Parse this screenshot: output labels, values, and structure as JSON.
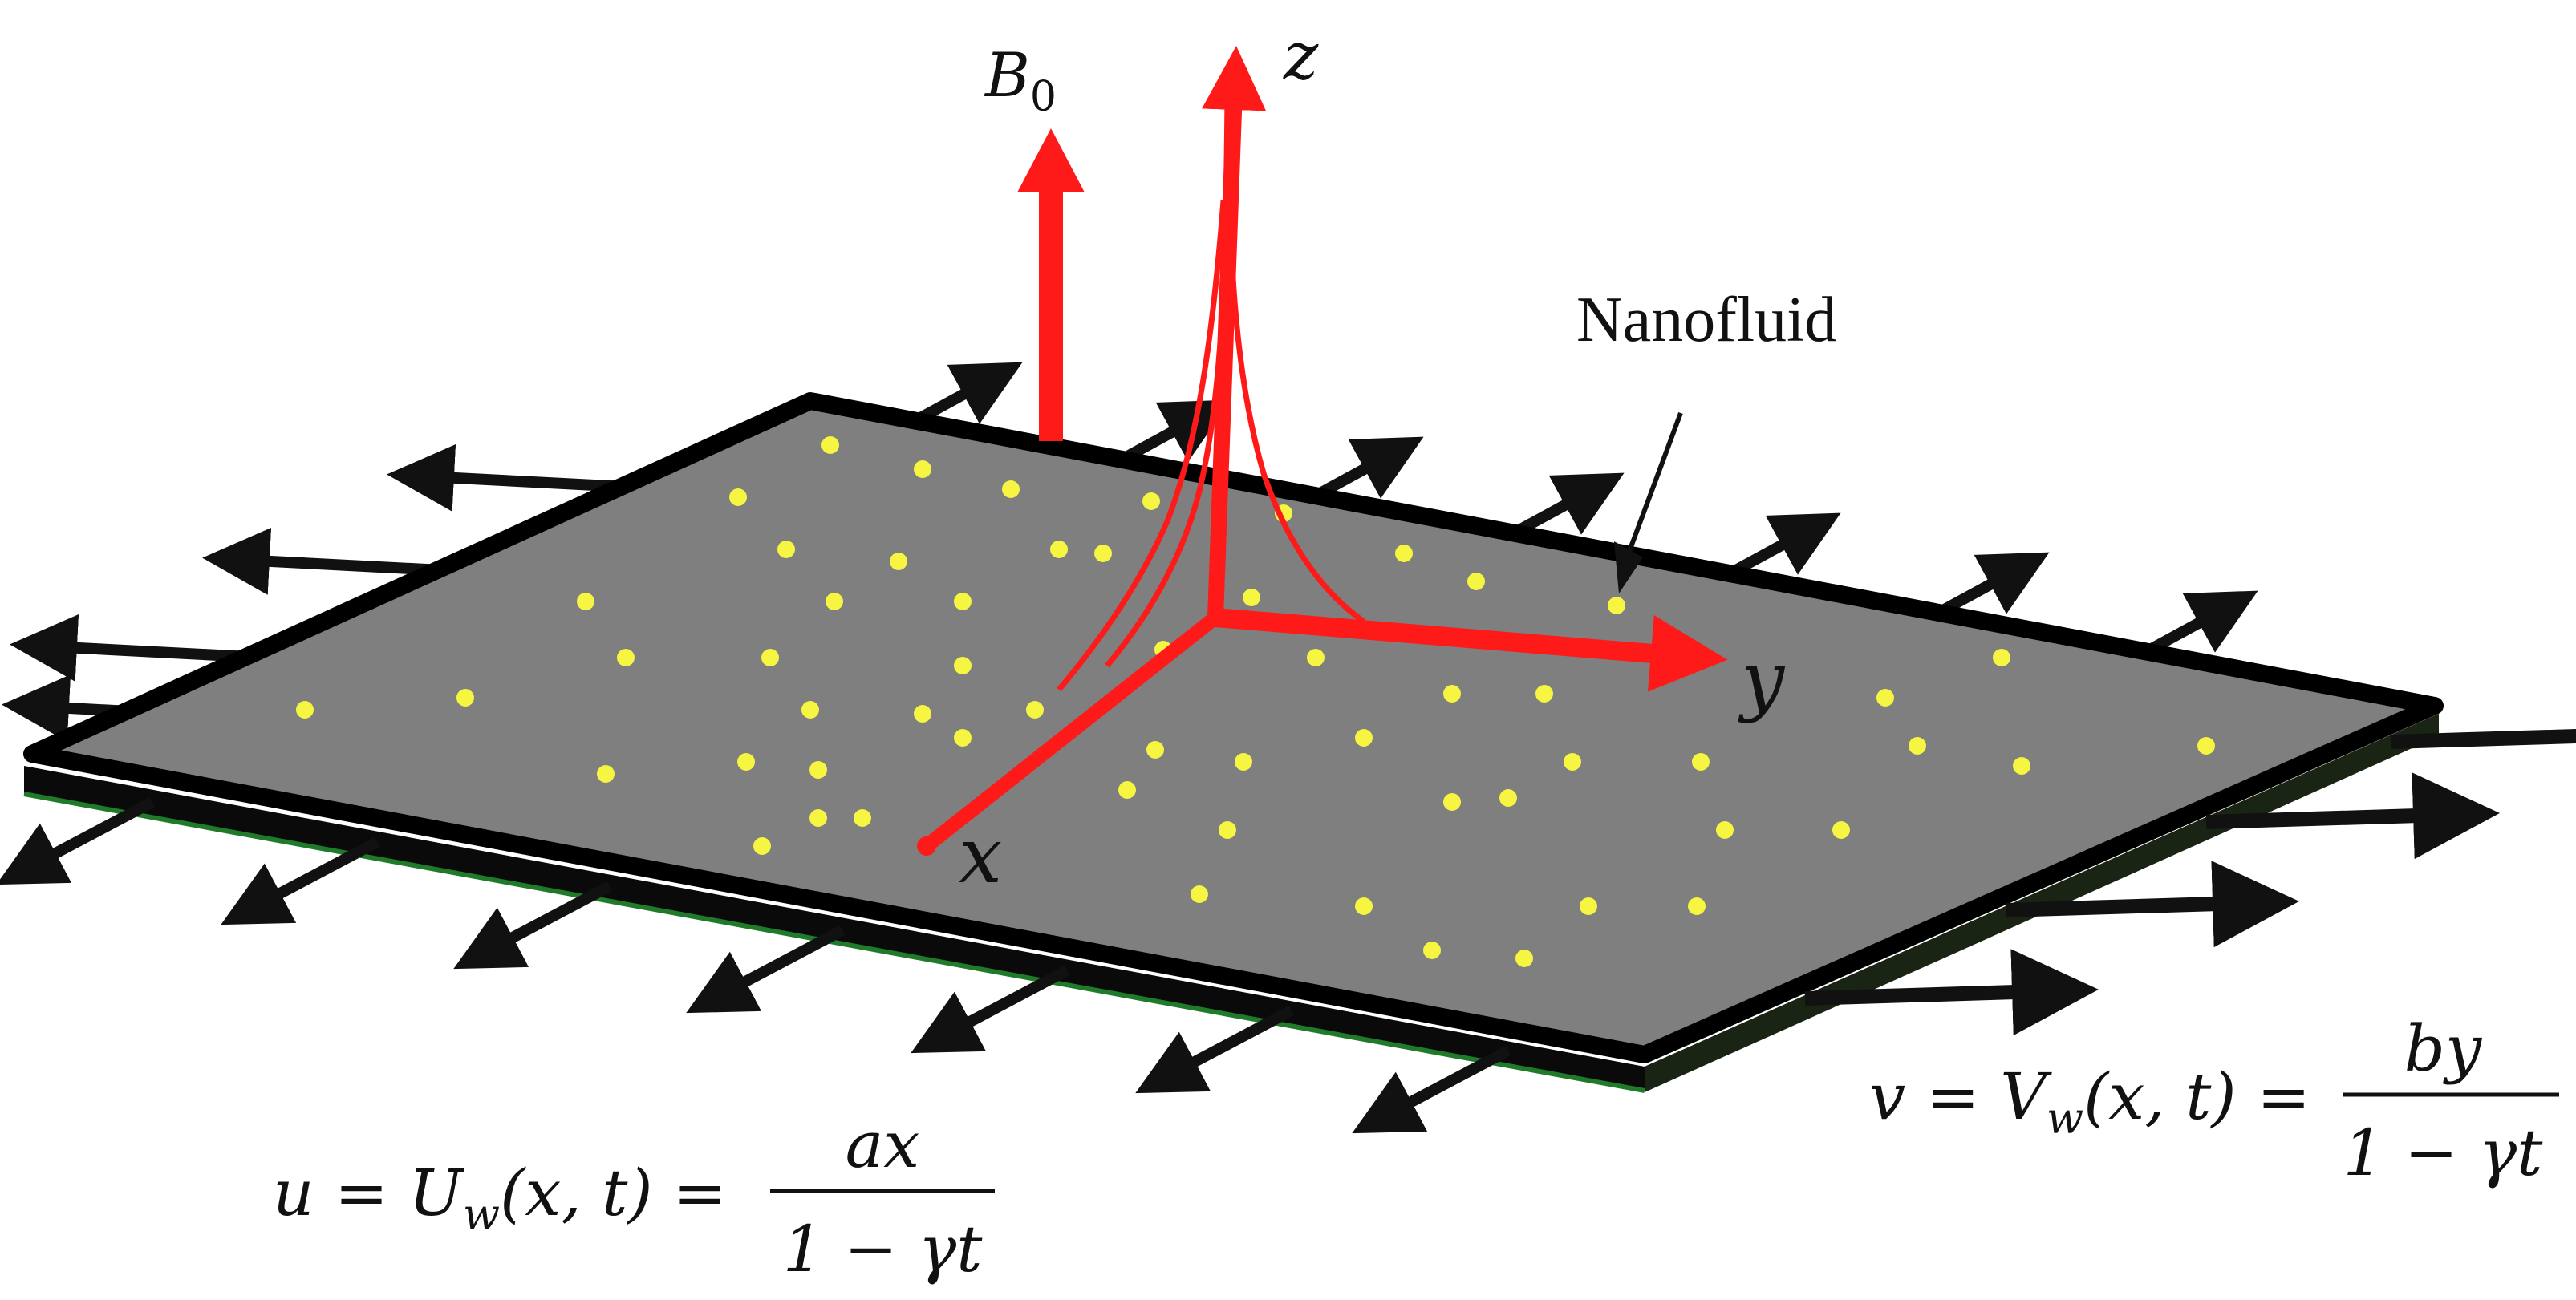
{
  "figure": {
    "field_label": {
      "base": "B",
      "sub": "0"
    },
    "axes": {
      "x": "x",
      "y": "y",
      "z": "z"
    },
    "fluid_label": "Nanofluid",
    "eq_u": {
      "lhs": "u = U",
      "lhs_sub": "w",
      "args": "(x, t) =",
      "numerator": "ax",
      "denominator": "1 − γt"
    },
    "eq_v": {
      "lhs": "v = V",
      "lhs_sub": "w",
      "args": "(x, t) =",
      "numerator": "by",
      "denominator": "1 − γt"
    },
    "colors": {
      "sheet": "#7f7f7f",
      "sheet_edge": "#000000",
      "axes": "#ff1a1a",
      "particles": "#f5f542",
      "stretch_arrows": "#111111",
      "bottom_line": "#1f7a2a"
    },
    "icons": {
      "stretch": "arrow-icon",
      "field": "up-arrow-icon"
    }
  }
}
